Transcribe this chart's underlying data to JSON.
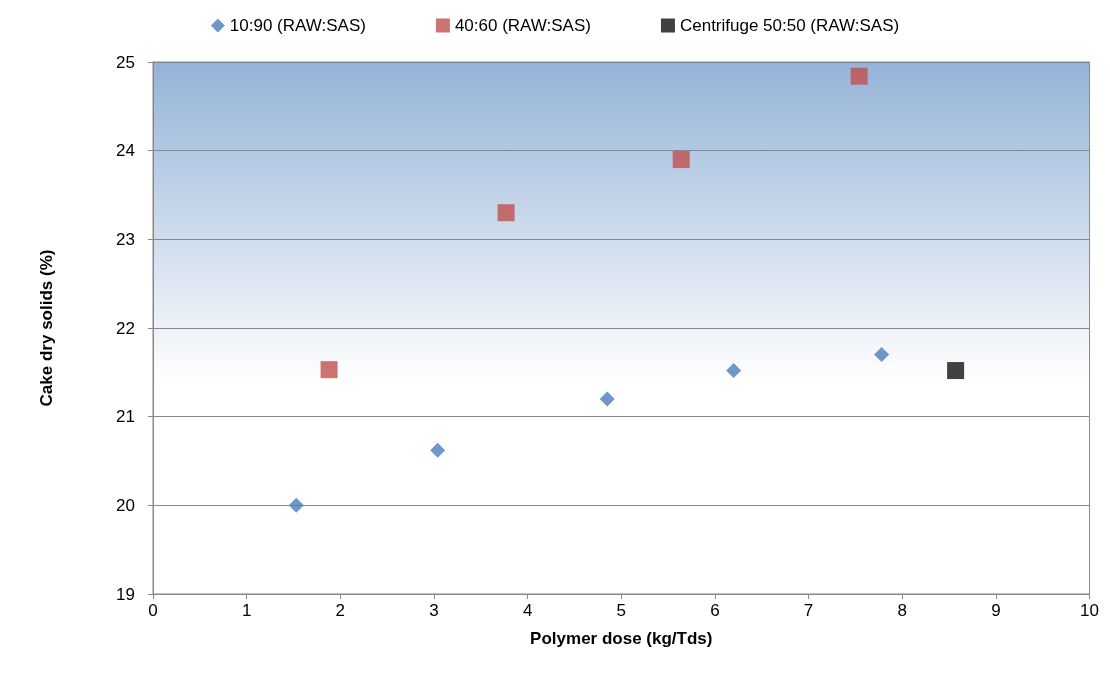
{
  "chart_data": {
    "type": "scatter",
    "xlabel": "Polymer dose (kg/Tds)",
    "ylabel": "Cake dry solids (%)",
    "xlim": [
      0,
      10
    ],
    "xticks": [
      0,
      1,
      2,
      3,
      4,
      5,
      6,
      7,
      8,
      9,
      10
    ],
    "ylim": [
      19,
      25
    ],
    "yticks": [
      19,
      20,
      21,
      22,
      23,
      24,
      25
    ],
    "grid": "y",
    "legend": "top",
    "series": [
      {
        "name": "10:90 (RAW:SAS)",
        "color": "#4a7ebb",
        "marker": "diamond",
        "x": [
          1.53,
          3.04,
          4.85,
          6.2,
          7.78
        ],
        "values": [
          20.0,
          20.62,
          21.2,
          21.52,
          21.7
        ]
      },
      {
        "name": "40:60 (RAW:SAS)",
        "color": "#c0504d",
        "marker": "square",
        "x": [
          1.88,
          3.77,
          5.64,
          7.54
        ],
        "values": [
          21.53,
          23.3,
          23.9,
          24.84
        ]
      },
      {
        "name": "Centrifuge 50:50 (RAW:SAS)",
        "color": "#111111",
        "marker": "square",
        "x": [
          8.57
        ],
        "values": [
          21.52
        ]
      }
    ]
  }
}
